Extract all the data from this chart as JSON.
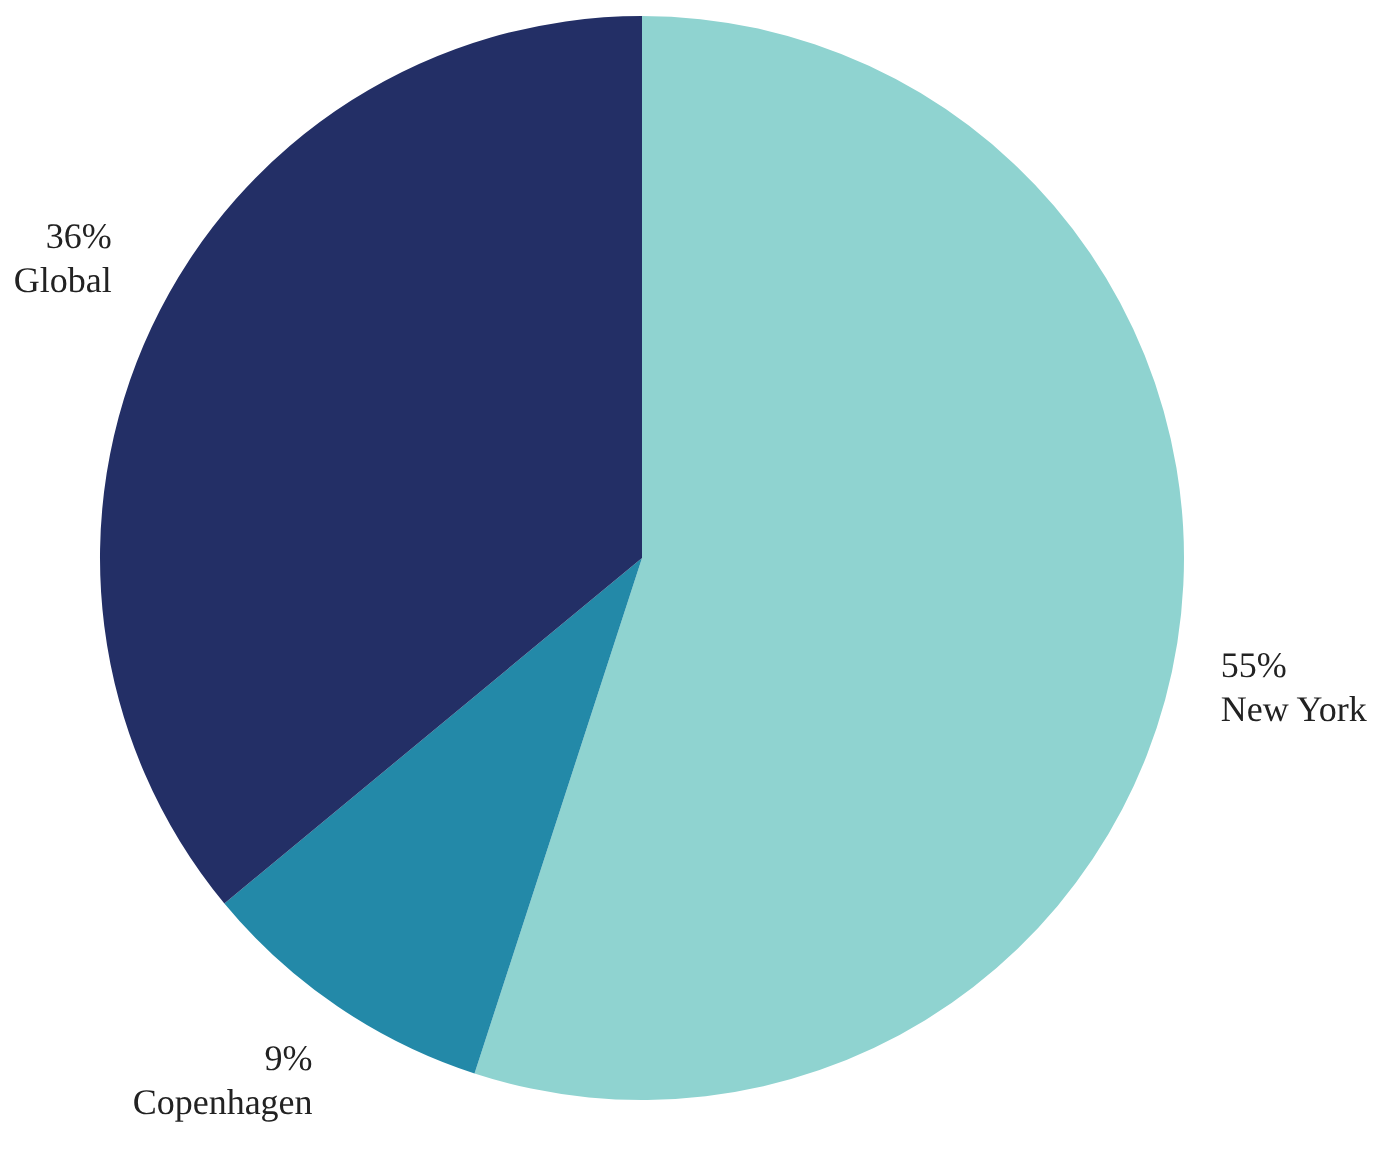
{
  "chart_data": {
    "type": "pie",
    "categories": [
      "New York",
      "Copenhagen",
      "Global"
    ],
    "values": [
      55,
      9,
      36
    ],
    "value_labels": [
      "55%",
      "9%",
      "36%"
    ],
    "colors": [
      "#8fd3d0",
      "#2389a8",
      "#232f66"
    ],
    "legend": false
  }
}
